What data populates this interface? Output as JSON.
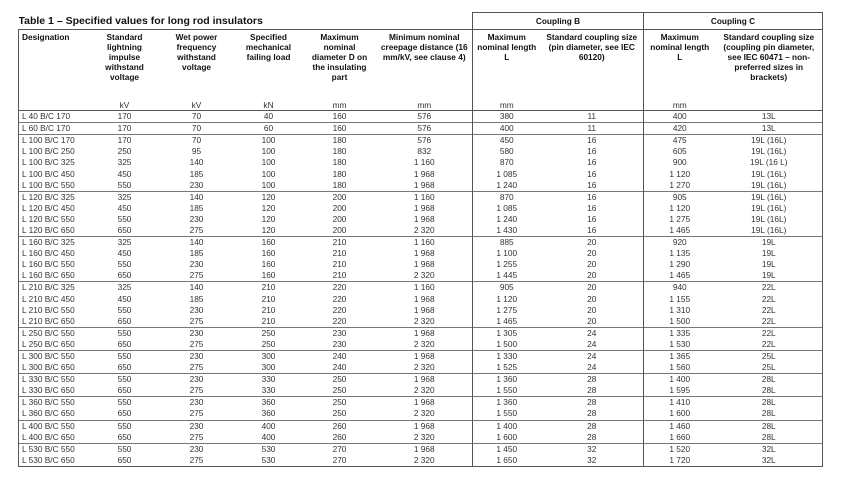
{
  "title": "Table 1 – Specified values for long rod insulators",
  "table": {
    "group_headers": [
      "Coupling B",
      "Coupling C"
    ],
    "columns": [
      "Designation",
      "Standard lightning impulse withstand voltage",
      "Wet power frequency withstand voltage",
      "Specified mechanical failing load",
      "Maximum nominal diameter D on the insulating part",
      "Minimum nominal creepage distance (16 mm/kV, see clause 4)",
      "Maximum nominal length L",
      "Standard coupling size (pin diameter, see IEC 60120)",
      "Maximum nominal length L",
      "Standard coupling size (coupling pin diameter, see IEC 60471 – non-preferred sizes in brackets)"
    ],
    "units": [
      null,
      "kV",
      "kV",
      "kN",
      "mm",
      "mm",
      "mm",
      null,
      "mm",
      null
    ],
    "groups": [
      [
        [
          "L 40 B/C 170",
          "170",
          "70",
          "40",
          "160",
          "576",
          "380",
          "11",
          "400",
          "13L"
        ]
      ],
      [
        [
          "L 60 B/C 170",
          "170",
          "70",
          "60",
          "160",
          "576",
          "400",
          "11",
          "420",
          "13L"
        ]
      ],
      [
        [
          "L 100 B/C 170",
          "170",
          "70",
          "100",
          "180",
          "576",
          "450",
          "16",
          "475",
          "19L (16L)"
        ],
        [
          "L 100 B/C 250",
          "250",
          "95",
          "100",
          "180",
          "832",
          "580",
          "16",
          "605",
          "19L (16L)"
        ],
        [
          "L 100 B/C 325",
          "325",
          "140",
          "100",
          "180",
          "1 160",
          "870",
          "16",
          "900",
          "19L (16 L)"
        ],
        [
          "L 100 B/C 450",
          "450",
          "185",
          "100",
          "180",
          "1 968",
          "1 085",
          "16",
          "1 120",
          "19L (16L)"
        ],
        [
          "L 100 B/C 550",
          "550",
          "230",
          "100",
          "180",
          "1 968",
          "1 240",
          "16",
          "1 270",
          "19L (16L)"
        ]
      ],
      [
        [
          "L 120 B/C 325",
          "325",
          "140",
          "120",
          "200",
          "1 160",
          "870",
          "16",
          "905",
          "19L (16L)"
        ],
        [
          "L 120 B/C 450",
          "450",
          "185",
          "120",
          "200",
          "1 968",
          "1 085",
          "16",
          "1 120",
          "19L (16L)"
        ],
        [
          "L 120 B/C 550",
          "550",
          "230",
          "120",
          "200",
          "1 968",
          "1 240",
          "16",
          "1 275",
          "19L (16L)"
        ],
        [
          "L 120 B/C 650",
          "650",
          "275",
          "120",
          "200",
          "2 320",
          "1 430",
          "16",
          "1 465",
          "19L (16L)"
        ]
      ],
      [
        [
          "L 160 B/C 325",
          "325",
          "140",
          "160",
          "210",
          "1 160",
          "885",
          "20",
          "920",
          "19L"
        ],
        [
          "L 160 B/C 450",
          "450",
          "185",
          "160",
          "210",
          "1 968",
          "1 100",
          "20",
          "1 135",
          "19L"
        ],
        [
          "L 160 B/C 550",
          "550",
          "230",
          "160",
          "210",
          "1 968",
          "1 255",
          "20",
          "1 290",
          "19L"
        ],
        [
          "L 160 B/C 650",
          "650",
          "275",
          "160",
          "210",
          "2 320",
          "1 445",
          "20",
          "1 465",
          "19L"
        ]
      ],
      [
        [
          "L 210 B/C 325",
          "325",
          "140",
          "210",
          "220",
          "1 160",
          "905",
          "20",
          "940",
          "22L"
        ],
        [
          "L 210 B/C 450",
          "450",
          "185",
          "210",
          "220",
          "1 968",
          "1 120",
          "20",
          "1 155",
          "22L"
        ],
        [
          "L 210 B/C 550",
          "550",
          "230",
          "210",
          "220",
          "1 968",
          "1 275",
          "20",
          "1 310",
          "22L"
        ],
        [
          "L 210 B/C 650",
          "650",
          "275",
          "210",
          "220",
          "2 320",
          "1 465",
          "20",
          "1 500",
          "22L"
        ]
      ],
      [
        [
          "L 250 B/C 550",
          "550",
          "230",
          "250",
          "230",
          "1 968",
          "1 305",
          "24",
          "1 335",
          "22L"
        ],
        [
          "L 250 B/C 650",
          "650",
          "275",
          "250",
          "230",
          "2 320",
          "1 500",
          "24",
          "1 530",
          "22L"
        ]
      ],
      [
        [
          "L 300 B/C 550",
          "550",
          "230",
          "300",
          "240",
          "1 968",
          "1 330",
          "24",
          "1 365",
          "25L"
        ],
        [
          "L 300 B/C 650",
          "650",
          "275",
          "300",
          "240",
          "2 320",
          "1 525",
          "24",
          "1 560",
          "25L"
        ]
      ],
      [
        [
          "L 330 B/C 550",
          "550",
          "230",
          "330",
          "250",
          "1 968",
          "1 360",
          "28",
          "1 400",
          "28L"
        ],
        [
          "L 330 B/C 650",
          "650",
          "275",
          "330",
          "250",
          "2 320",
          "1 550",
          "28",
          "1 595",
          "28L"
        ]
      ],
      [
        [
          "L 360 B/C 550",
          "550",
          "230",
          "360",
          "250",
          "1 968",
          "1 360",
          "28",
          "1 410",
          "28L"
        ],
        [
          "L 360 B/C 650",
          "650",
          "275",
          "360",
          "250",
          "2 320",
          "1 550",
          "28",
          "1 600",
          "28L"
        ]
      ],
      [
        [
          "L 400 B/C 550",
          "550",
          "230",
          "400",
          "260",
          "1 968",
          "1 400",
          "28",
          "1 460",
          "28L"
        ],
        [
          "L 400 B/C 650",
          "650",
          "275",
          "400",
          "260",
          "2 320",
          "1 600",
          "28",
          "1 660",
          "28L"
        ]
      ],
      [
        [
          "L 530 B/C 550",
          "550",
          "230",
          "530",
          "270",
          "1 968",
          "1 450",
          "32",
          "1 520",
          "32L"
        ],
        [
          "L 530 B/C 650",
          "650",
          "275",
          "530",
          "270",
          "2 320",
          "1 650",
          "32",
          "1 720",
          "32L"
        ]
      ]
    ]
  }
}
